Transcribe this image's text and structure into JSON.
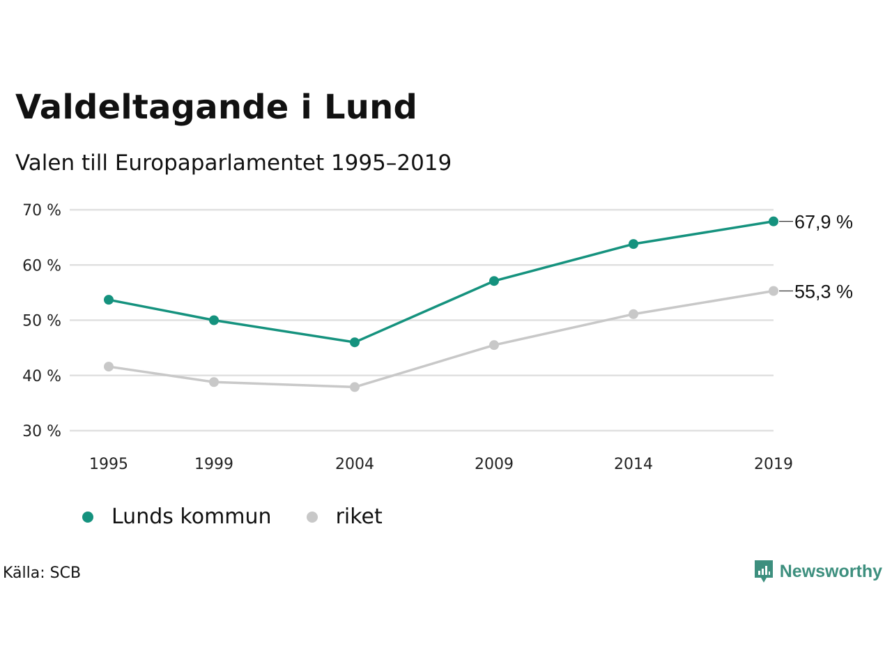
{
  "header": {
    "title": "Valdeltagande i Lund",
    "subtitle": "Valen till Europaparlamentet 1995–2019"
  },
  "colors": {
    "lund": "#15927e",
    "riket": "#c8c8c8",
    "grid": "#e0e0e0",
    "brand": "#3d8f7e"
  },
  "chart_data": {
    "type": "line",
    "title": "Valdeltagande i Lund",
    "subtitle": "Valen till Europaparlamentet 1995–2019",
    "x": [
      "1995",
      "1999",
      "2004",
      "2009",
      "2014",
      "2019"
    ],
    "ylim": [
      30,
      70
    ],
    "yticks": [
      30,
      40,
      50,
      60,
      70
    ],
    "ytick_labels": [
      "30 %",
      "40 %",
      "50 %",
      "60 %",
      "70 %"
    ],
    "grid": true,
    "legend_position": "bottom-left",
    "series": [
      {
        "name": "Lunds kommun",
        "color": "#15927e",
        "values": [
          53.7,
          50.0,
          46.0,
          57.1,
          63.8,
          67.9
        ],
        "end_label": "67,9 %"
      },
      {
        "name": "riket",
        "color": "#c8c8c8",
        "values": [
          41.6,
          38.8,
          37.9,
          45.5,
          51.1,
          55.3
        ],
        "end_label": "55,3 %"
      }
    ]
  },
  "legend": {
    "items": [
      {
        "label": "Lunds kommun",
        "color": "#15927e"
      },
      {
        "label": "riket",
        "color": "#c8c8c8"
      }
    ]
  },
  "footer": {
    "source": "Källa: SCB",
    "brand": "Newsworthy"
  }
}
